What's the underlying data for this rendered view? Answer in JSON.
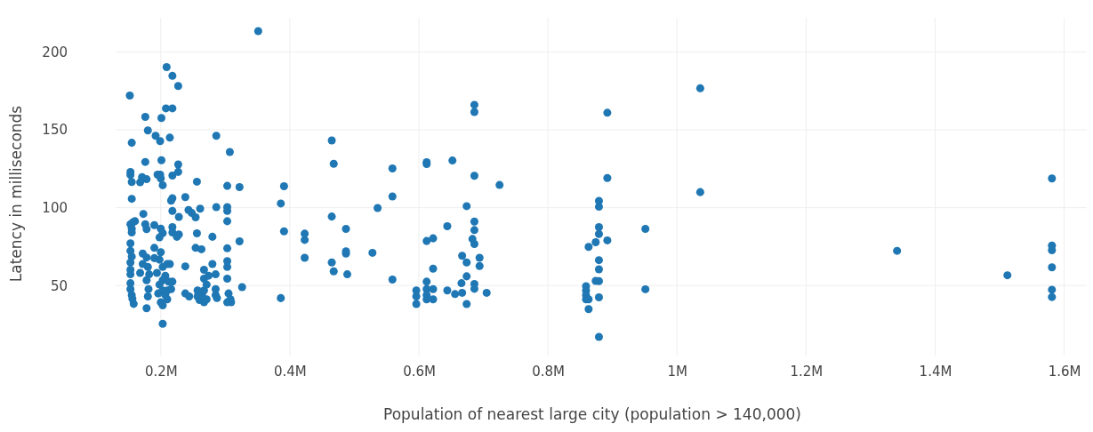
{
  "chart_data": {
    "type": "scatter",
    "xlabel": "Population of nearest large city (population > 140,000)",
    "ylabel": "Latency in milliseconds",
    "marker": "circle",
    "grid": true,
    "xlim": [
      130000,
      1635000
    ],
    "ylim": [
      5,
      222
    ],
    "xticks": [
      {
        "value": 200000,
        "label": "0.2M"
      },
      {
        "value": 400000,
        "label": "0.4M"
      },
      {
        "value": 600000,
        "label": "0.6M"
      },
      {
        "value": 800000,
        "label": "0.8M"
      },
      {
        "value": 1000000,
        "label": "1M"
      },
      {
        "value": 1200000,
        "label": "1.2M"
      },
      {
        "value": 1400000,
        "label": "1.4M"
      },
      {
        "value": 1600000,
        "label": "1.6M"
      }
    ],
    "yticks": [
      50,
      100,
      150,
      200
    ],
    "series": [
      {
        "color": "#1f77b4",
        "x": [
          1036000,
          1036000,
          1341000,
          1512000,
          1581000,
          1581000,
          1581000,
          1581000,
          1581000,
          1581000,
          386000,
          391000,
          391000,
          386000,
          423000,
          423000,
          423000,
          465000,
          468000,
          465000,
          487000,
          487000,
          487000,
          465000,
          468000,
          489000,
          528000,
          536000,
          559000,
          559000,
          559000,
          612000,
          612000,
          652000,
          686000,
          686000,
          686000,
          725000,
          674000,
          644000,
          686000,
          686000,
          683000,
          686000,
          612000,
          622000,
          667000,
          674000,
          694000,
          694000,
          674000,
          622000,
          666000,
          686000,
          686000,
          612000,
          596000,
          596000,
          596000,
          612000,
          612000,
          612000,
          622000,
          622000,
          644000,
          656000,
          667000,
          674000,
          705000,
          892000,
          892000,
          892000,
          879000,
          879000,
          879000,
          879000,
          874000,
          863000,
          879000,
          879000,
          874000,
          879000,
          879000,
          859000,
          859000,
          859000,
          859000,
          863000,
          863000,
          879000,
          951000,
          951000,
          351000,
          152000,
          209000,
          218000,
          227000,
          208000,
          218000,
          176000,
          201000,
          180000,
          192000,
          199000,
          214000,
          155000,
          286000,
          307000,
          176000,
          201000,
          227000,
          227000,
          153000,
          153000,
          171000,
          178000,
          155000,
          168000,
          195000,
          199000,
          200000,
          203000,
          218000,
          256000,
          303000,
          322000,
          155000,
          173000,
          218000,
          216000,
          238000,
          218000,
          228000,
          243000,
          248000,
          254000,
          261000,
          286000,
          303000,
          303000,
          303000,
          153000,
          157000,
          160000,
          155000,
          155000,
          176000,
          178000,
          190000,
          200000,
          203000,
          198000,
          218000,
          218000,
          228000,
          225000,
          256000,
          280000,
          303000,
          254000,
          263000,
          322000,
          153000,
          153000,
          155000,
          153000,
          153000,
          153000,
          153000,
          153000,
          155000,
          156000,
          158000,
          172000,
          178000,
          172000,
          168000,
          190000,
          190000,
          200000,
          198000,
          180000,
          182000,
          178000,
          181000,
          180000,
          178000,
          194000,
          203000,
          210000,
          214000,
          207000,
          203000,
          212000,
          198000,
          203000,
          196000,
          207000,
          210000,
          200000,
          203000,
          203000,
          218000,
          210000,
          216000,
          238000,
          238000,
          244000,
          257000,
          257000,
          260000,
          264000,
          267000,
          271000,
          267000,
          271000,
          267000,
          274000,
          267000,
          280000,
          285000,
          285000,
          285000,
          287000,
          303000,
          303000,
          303000,
          305000,
          308000,
          309000,
          303000,
          326000
        ],
        "values": [
          176.7,
          110,
          72.3,
          56.6,
          118.8,
          75.7,
          72.7,
          61.7,
          47.3,
          42.6,
          102.7,
          113.8,
          84.8,
          41.9,
          83.3,
          79.3,
          67.8,
          143.2,
          128.2,
          94.3,
          86.4,
          70.5,
          72,
          64.8,
          59.1,
          57.2,
          71,
          99.8,
          125.2,
          107.2,
          53.8,
          129.2,
          128,
          130.3,
          166.1,
          161.5,
          120.5,
          114.6,
          101,
          88.1,
          91.1,
          85.6,
          79.9,
          76.7,
          78.6,
          80.3,
          69.1,
          64.8,
          67.8,
          62.5,
          55.9,
          60.8,
          51.5,
          51,
          47.9,
          52.5,
          46.8,
          43,
          38.1,
          47.7,
          43.9,
          41.1,
          47.7,
          41.1,
          46.8,
          44.5,
          45.3,
          38.1,
          45.3,
          161,
          119.1,
          79,
          104.4,
          100.6,
          87.5,
          83.1,
          77.8,
          74.8,
          66.3,
          60.4,
          53,
          52.8,
          42.4,
          49.6,
          46.8,
          43.9,
          41.1,
          41.1,
          34.8,
          17,
          86.4,
          47.6,
          213.4,
          172,
          190.3,
          184.7,
          178.2,
          163.8,
          163.8,
          158.3,
          157.6,
          149.6,
          146.2,
          142.8,
          145,
          141.7,
          146.2,
          135.8,
          129.4,
          130.5,
          127.8,
          123,
          122.9,
          121,
          119.7,
          118.3,
          116.5,
          116.3,
          121.2,
          121.2,
          118.8,
          114.4,
          120.6,
          116.7,
          114,
          113.2,
          105.7,
          96,
          106.1,
          104.5,
          106.8,
          97.9,
          94.1,
          98.5,
          96.6,
          93.8,
          99.4,
          100.4,
          100.4,
          97.9,
          91.3,
          89.4,
          90.7,
          91.3,
          86.5,
          84.1,
          89.4,
          86.2,
          88.8,
          86.5,
          83.7,
          80.9,
          87.5,
          84.1,
          82.8,
          81.3,
          83.5,
          81.3,
          73.9,
          74.2,
          73.3,
          78.4,
          77.1,
          72.3,
          68.6,
          64.8,
          60.1,
          57.2,
          51.5,
          47.7,
          43.9,
          41.5,
          38.2,
          70.5,
          68,
          63.8,
          58.1,
          74.2,
          67.6,
          71.4,
          66.6,
          61.9,
          57.2,
          53.4,
          47.7,
          43,
          35.4,
          58.1,
          61.9,
          63.8,
          63.8,
          56.3,
          53.4,
          52.5,
          50.6,
          46.8,
          44.9,
          43.9,
          41.1,
          39.2,
          37.3,
          25.4,
          52.5,
          46.8,
          47.7,
          62.3,
          44.9,
          43,
          46.8,
          43,
          40.7,
          43.9,
          39.2,
          41.1,
          46.8,
          50.6,
          54.4,
          56.3,
          60.1,
          63.8,
          57.2,
          47.7,
          43.9,
          42,
          65.7,
          61.9,
          54.4,
          44.9,
          41.1,
          39.2,
          39.2,
          49
        ]
      }
    ]
  }
}
